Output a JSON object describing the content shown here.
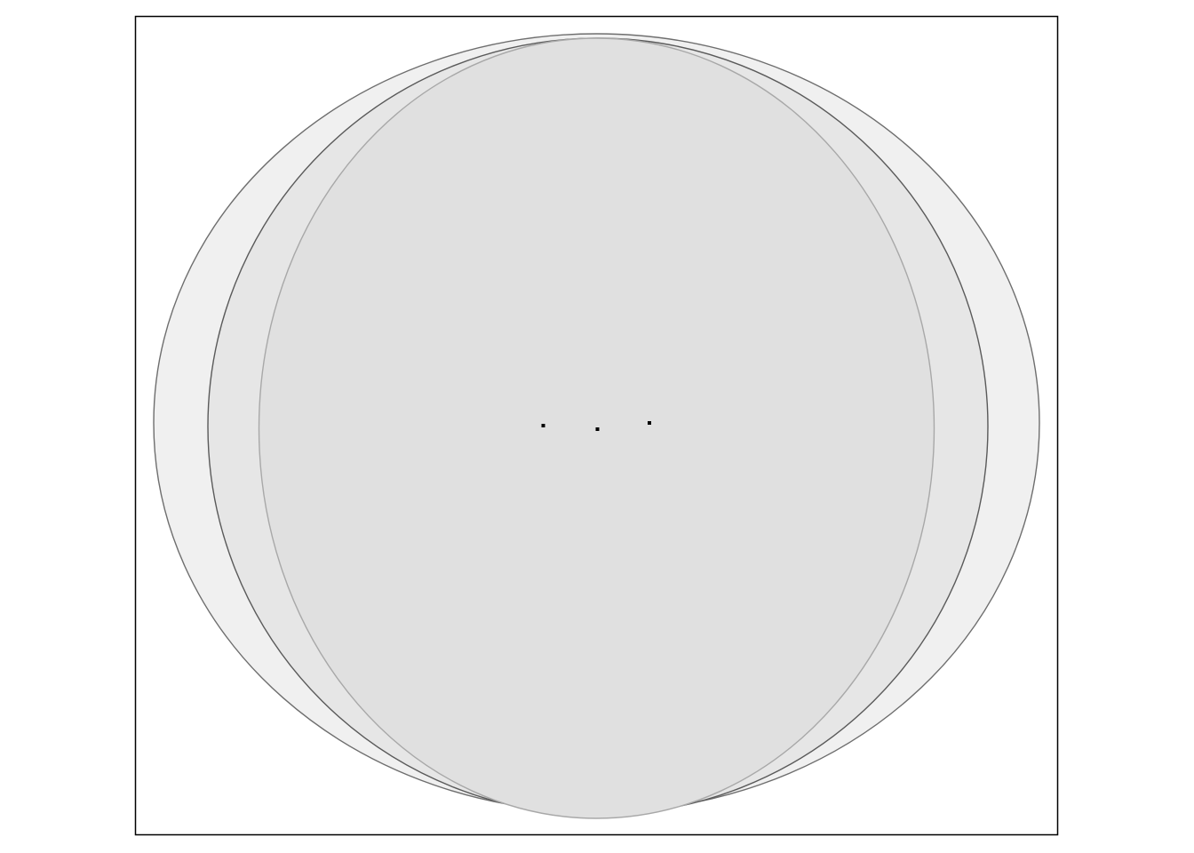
{
  "diagram": {
    "type": "overlapping-circles",
    "circle_count": 3,
    "center_marker_count": 3,
    "text_labels": [],
    "colors": {
      "background": "#ffffff",
      "panel_border": "#000000",
      "outer_circle_fill": "#f0f0f0",
      "middle_circle_fill": "#e6e6e6",
      "inner_circle_fill": "#e0e0e0",
      "outer_circle_stroke": "#6e6e6e",
      "middle_circle_stroke": "#5a5a5a",
      "inner_circle_stroke": "#a8a8a8",
      "marker": "#000000"
    }
  }
}
